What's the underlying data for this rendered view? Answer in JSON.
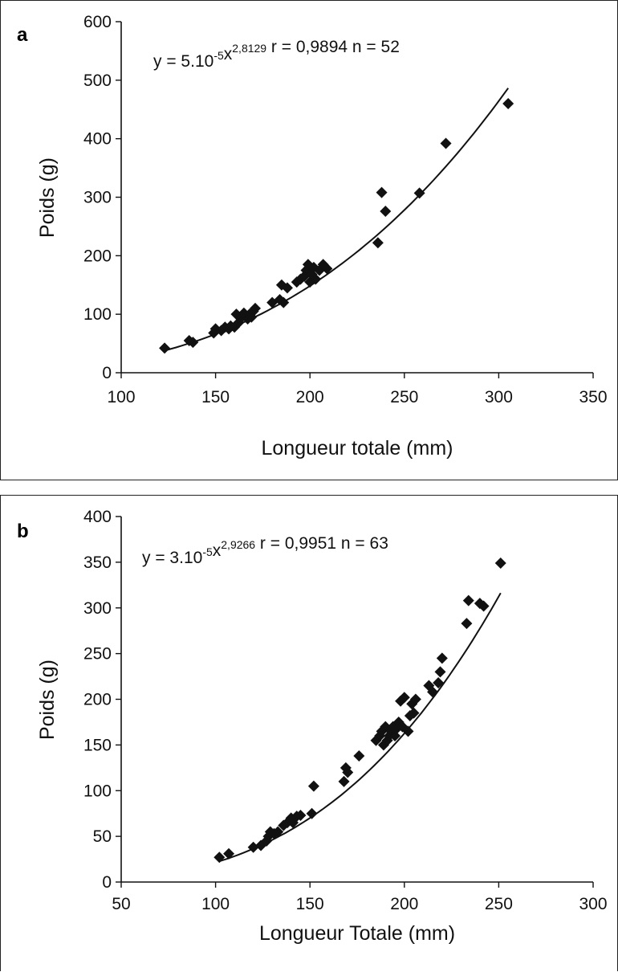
{
  "chart_data": [
    {
      "type": "scatter",
      "panel_label": "a",
      "equation": {
        "base": "y = 5.10",
        "exp1": "-5",
        "mid": "x",
        "exp2": "2,8129",
        "rest": "  r = 0,9894 n = 52"
      },
      "xlabel": "Longueur totale (mm)",
      "ylabel": "Poids (g)",
      "xlim": [
        100,
        350
      ],
      "ylim": [
        0,
        600
      ],
      "xticks": [
        100,
        150,
        200,
        250,
        300,
        350
      ],
      "yticks": [
        0,
        100,
        200,
        300,
        400,
        500,
        600
      ],
      "trend": {
        "a": 5e-05,
        "b": 2.8129,
        "x_start": 123,
        "x_end": 305
      },
      "points": [
        [
          123,
          42
        ],
        [
          136,
          55
        ],
        [
          138,
          52
        ],
        [
          149,
          68
        ],
        [
          150,
          75
        ],
        [
          153,
          72
        ],
        [
          155,
          78
        ],
        [
          157,
          75
        ],
        [
          158,
          80
        ],
        [
          160,
          78
        ],
        [
          161,
          100
        ],
        [
          162,
          85
        ],
        [
          164,
          95
        ],
        [
          165,
          102
        ],
        [
          166,
          98
        ],
        [
          167,
          92
        ],
        [
          168,
          100
        ],
        [
          169,
          95
        ],
        [
          170,
          105
        ],
        [
          171,
          110
        ],
        [
          180,
          120
        ],
        [
          184,
          125
        ],
        [
          185,
          150
        ],
        [
          186,
          120
        ],
        [
          188,
          145
        ],
        [
          193,
          155
        ],
        [
          195,
          160
        ],
        [
          197,
          165
        ],
        [
          198,
          175
        ],
        [
          199,
          185
        ],
        [
          200,
          155
        ],
        [
          201,
          168
        ],
        [
          202,
          180
        ],
        [
          203,
          160
        ],
        [
          205,
          175
        ],
        [
          207,
          185
        ],
        [
          209,
          178
        ],
        [
          236,
          222
        ],
        [
          238,
          308
        ],
        [
          240,
          276
        ],
        [
          258,
          307
        ],
        [
          272,
          392
        ],
        [
          305,
          460
        ]
      ],
      "colors": {
        "marker": "#111111",
        "line": "#111111"
      }
    },
    {
      "type": "scatter",
      "panel_label": "b",
      "equation": {
        "base": "y = 3.10",
        "exp1": "-5",
        "mid": "x",
        "exp2": "2,9266",
        "rest": "  r = 0,9951 n = 63"
      },
      "xlabel": "Longueur Totale (mm)",
      "ylabel": "Poids (g)",
      "xlim": [
        50,
        300
      ],
      "ylim": [
        0,
        400
      ],
      "xticks": [
        50,
        100,
        150,
        200,
        250,
        300
      ],
      "yticks": [
        0,
        50,
        100,
        150,
        200,
        250,
        300,
        350,
        400
      ],
      "trend": {
        "a": 3e-05,
        "b": 2.9266,
        "x_start": 102,
        "x_end": 251
      },
      "points": [
        [
          102,
          27
        ],
        [
          107,
          31
        ],
        [
          120,
          38
        ],
        [
          124,
          40
        ],
        [
          127,
          45
        ],
        [
          128,
          50
        ],
        [
          129,
          55
        ],
        [
          131,
          53
        ],
        [
          133,
          55
        ],
        [
          136,
          62
        ],
        [
          138,
          65
        ],
        [
          140,
          70
        ],
        [
          141,
          65
        ],
        [
          143,
          72
        ],
        [
          145,
          73
        ],
        [
          151,
          75
        ],
        [
          152,
          105
        ],
        [
          168,
          110
        ],
        [
          169,
          125
        ],
        [
          170,
          120
        ],
        [
          176,
          138
        ],
        [
          185,
          155
        ],
        [
          187,
          160
        ],
        [
          188,
          165
        ],
        [
          189,
          150
        ],
        [
          190,
          170
        ],
        [
          191,
          155
        ],
        [
          192,
          160
        ],
        [
          193,
          165
        ],
        [
          194,
          170
        ],
        [
          195,
          160
        ],
        [
          196,
          168
        ],
        [
          197,
          175
        ],
        [
          198,
          198
        ],
        [
          199,
          170
        ],
        [
          200,
          202
        ],
        [
          202,
          165
        ],
        [
          203,
          182
        ],
        [
          204,
          195
        ],
        [
          205,
          185
        ],
        [
          206,
          200
        ],
        [
          213,
          215
        ],
        [
          215,
          208
        ],
        [
          218,
          218
        ],
        [
          219,
          230
        ],
        [
          220,
          245
        ],
        [
          233,
          283
        ],
        [
          234,
          308
        ],
        [
          240,
          305
        ],
        [
          242,
          302
        ],
        [
          251,
          349
        ]
      ],
      "colors": {
        "marker": "#111111",
        "line": "#111111"
      }
    }
  ]
}
